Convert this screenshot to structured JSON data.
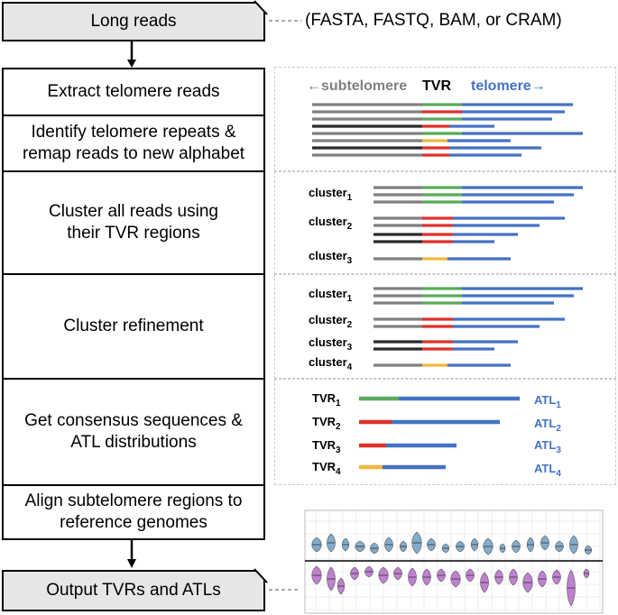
{
  "steps": {
    "input": "Long reads",
    "input_note": "(FASTA, FASTQ, BAM, or CRAM)",
    "extract": "Extract telomere reads",
    "identify": "Identify telomere repeats & remap reads to new alphabet",
    "cluster": "Cluster all reads using their TVR regions",
    "refine": "Cluster refinement",
    "consensus": "Get consensus sequences & ATL distributions",
    "align": "Align subtelomere regions to reference genomes",
    "output": "Output TVRs and ATLs"
  },
  "header": {
    "subtelomere": "←subtelomere",
    "tvr": "TVR",
    "telomere": "telomere→"
  },
  "cluster_labels": {
    "c1": "cluster",
    "c2": "cluster",
    "c3": "cluster",
    "c4": "cluster",
    "s1": "1",
    "s2": "2",
    "s3": "3",
    "s4": "4"
  },
  "consensus_labels": {
    "tvr": "TVR",
    "atl": "ATL",
    "s1": "1",
    "s2": "2",
    "s3": "3",
    "s4": "4"
  },
  "colors": {
    "subtelomere": "#808080",
    "subtelomere_dark": "#2b2b2b",
    "tvr_green": "#5aa95a",
    "tvr_red": "#e0302a",
    "tvr_yellow": "#f0b840",
    "telomere": "#4472c4",
    "violin_blue": "#6d9ec2",
    "violin_purple": "#b46cc8"
  }
}
